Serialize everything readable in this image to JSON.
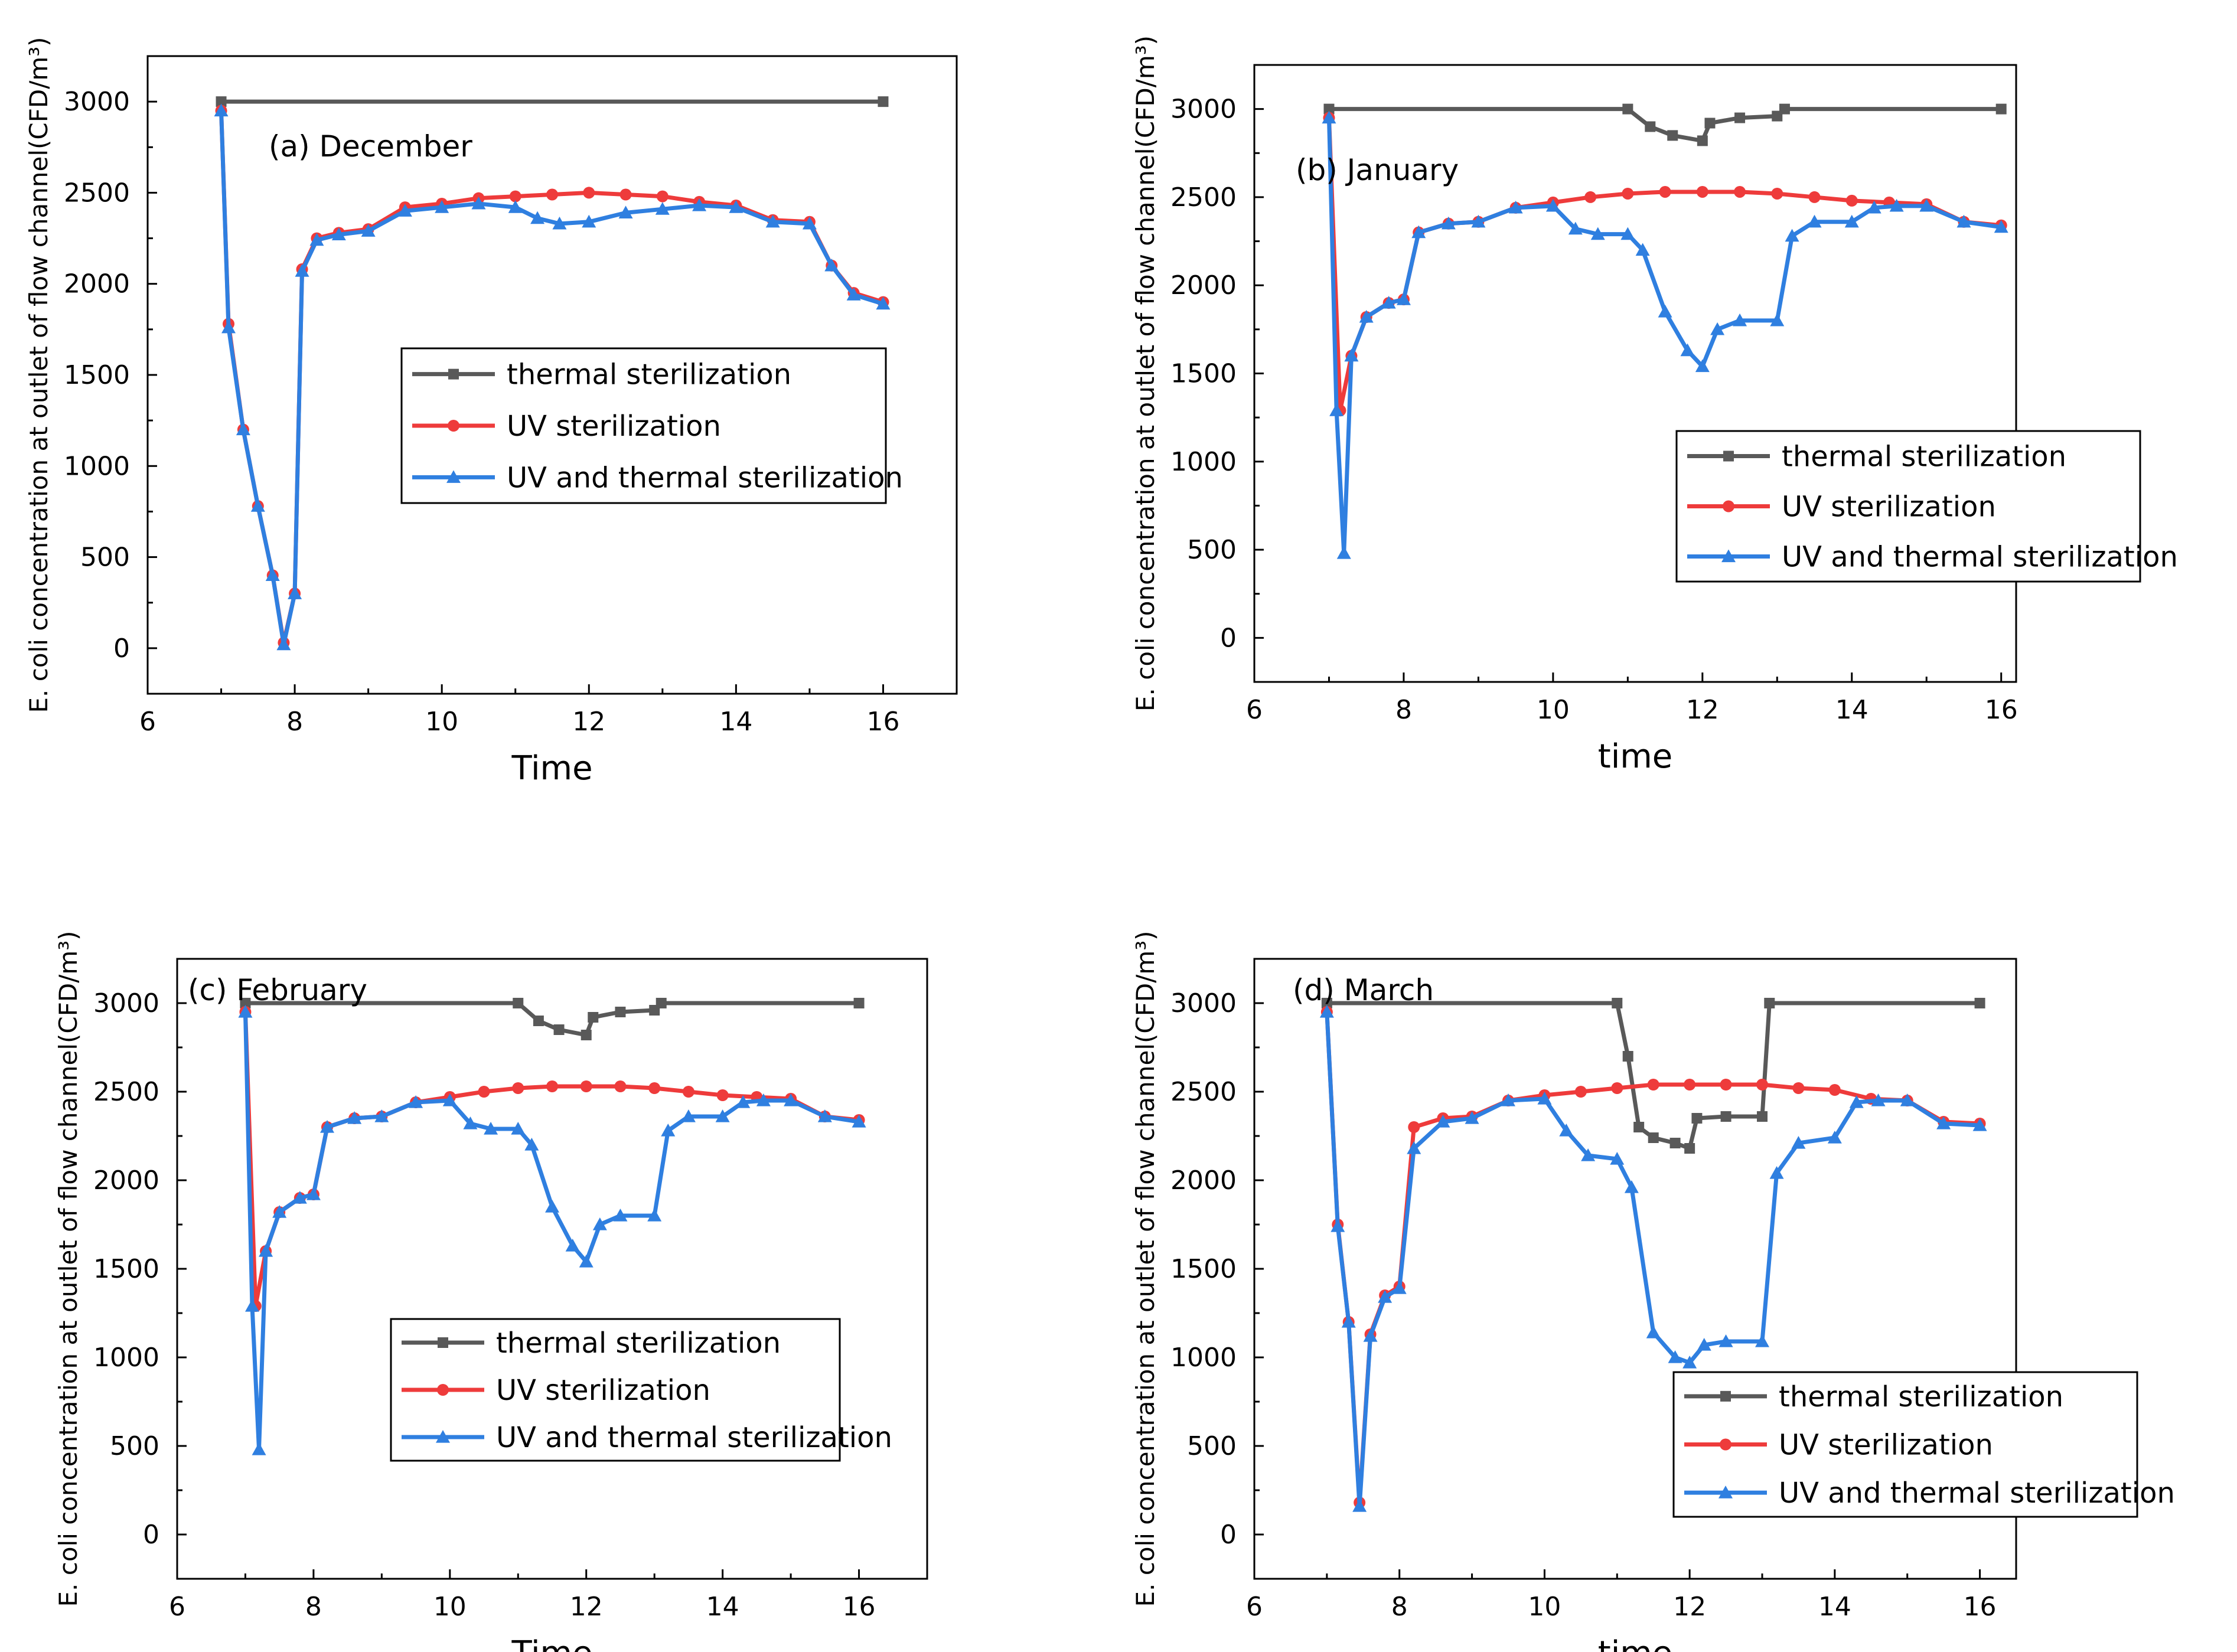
{
  "colors": {
    "thermal": "#595959",
    "uv": "#ee3b3b",
    "combined": "#2f7fe0"
  },
  "chart_data": [
    {
      "type": "line",
      "title": "(a) December",
      "xlabel": "Time",
      "ylabel": "E. coli concentration at outlet of flow channel(CFD/m³)",
      "xlim": [
        6,
        17
      ],
      "ylim": [
        -250,
        3250
      ],
      "xticks": [
        6,
        8,
        10,
        12,
        14,
        16
      ],
      "yticks": [
        0,
        500,
        1000,
        1500,
        2000,
        2500,
        3000
      ],
      "xtick_labels": [
        "6",
        "8",
        "10",
        "12",
        "14",
        "16"
      ],
      "ytick_labels": [
        "0",
        "500",
        "1000",
        "1500",
        "2000",
        "2500",
        "3000"
      ],
      "legend": [
        "thermal sterilization",
        "UV sterilization",
        "UV and thermal sterilization"
      ],
      "series": [
        {
          "name": "thermal sterilization",
          "marker": "square",
          "x": [
            7,
            16
          ],
          "y": [
            3000,
            3000
          ]
        },
        {
          "name": "UV sterilization",
          "marker": "circle",
          "x": [
            7,
            7.1,
            7.3,
            7.5,
            7.7,
            7.85,
            8,
            8.1,
            8.3,
            8.6,
            9,
            9.5,
            10,
            10.5,
            11,
            11.5,
            12,
            12.5,
            13,
            13.5,
            14,
            14.5,
            15,
            15.3,
            15.6,
            16
          ],
          "y": [
            2950,
            1780,
            1200,
            780,
            400,
            30,
            300,
            2080,
            2250,
            2280,
            2300,
            2420,
            2440,
            2470,
            2480,
            2490,
            2500,
            2490,
            2480,
            2450,
            2430,
            2350,
            2340,
            2100,
            1950,
            1900
          ]
        },
        {
          "name": "UV and thermal sterilization",
          "marker": "triangle",
          "x": [
            7,
            7.1,
            7.3,
            7.5,
            7.7,
            7.85,
            8,
            8.1,
            8.3,
            8.6,
            9,
            9.5,
            10,
            10.5,
            11,
            11.3,
            11.6,
            12,
            12.5,
            13,
            13.5,
            14,
            14.5,
            15,
            15.3,
            15.6,
            16
          ],
          "y": [
            2950,
            1760,
            1200,
            780,
            400,
            20,
            300,
            2070,
            2240,
            2270,
            2290,
            2400,
            2420,
            2440,
            2420,
            2360,
            2330,
            2340,
            2390,
            2410,
            2430,
            2420,
            2340,
            2330,
            2100,
            1940,
            1890
          ]
        }
      ]
    },
    {
      "type": "line",
      "title": "(b) January",
      "xlabel": "time",
      "ylabel": "E. coli concentration at outlet of flow channel(CFD/m³)",
      "xlim": [
        6,
        16.2
      ],
      "ylim": [
        -250,
        3250
      ],
      "xticks": [
        6,
        8,
        10,
        12,
        14,
        16
      ],
      "yticks": [
        0,
        500,
        1000,
        1500,
        2000,
        2500,
        3000
      ],
      "xtick_labels": [
        "6",
        "8",
        "10",
        "12",
        "14",
        "16"
      ],
      "ytick_labels": [
        "0",
        "500",
        "1000",
        "1500",
        "2000",
        "2500",
        "3000"
      ],
      "legend": [
        "thermal sterilization",
        "UV sterilization",
        "UV and thermal sterilization"
      ],
      "series": [
        {
          "name": "thermal sterilization",
          "marker": "square",
          "x": [
            7,
            11,
            11.3,
            11.6,
            12,
            12.1,
            12.5,
            13,
            13.1,
            16
          ],
          "y": [
            3000,
            3000,
            2900,
            2850,
            2820,
            2920,
            2950,
            2960,
            3000,
            3000
          ]
        },
        {
          "name": "UV sterilization",
          "marker": "circle",
          "x": [
            7,
            7.15,
            7.3,
            7.5,
            7.8,
            8,
            8.2,
            8.6,
            9,
            9.5,
            10,
            10.5,
            11,
            11.5,
            12,
            12.5,
            13,
            13.5,
            14,
            14.5,
            15,
            15.5,
            16
          ],
          "y": [
            2950,
            1290,
            1600,
            1820,
            1900,
            1920,
            2300,
            2350,
            2360,
            2440,
            2470,
            2500,
            2520,
            2530,
            2530,
            2530,
            2520,
            2500,
            2480,
            2470,
            2460,
            2360,
            2340
          ]
        },
        {
          "name": "UV and thermal sterilization",
          "marker": "triangle",
          "x": [
            7,
            7.1,
            7.2,
            7.3,
            7.5,
            7.8,
            8,
            8.2,
            8.6,
            9,
            9.5,
            10,
            10.3,
            10.6,
            11,
            11.2,
            11.5,
            11.8,
            12,
            12.2,
            12.5,
            13,
            13.2,
            13.5,
            14,
            14.3,
            14.6,
            15,
            15.5,
            16
          ],
          "y": [
            2950,
            1290,
            480,
            1600,
            1820,
            1900,
            1920,
            2300,
            2350,
            2360,
            2440,
            2450,
            2320,
            2290,
            2290,
            2200,
            1850,
            1630,
            1540,
            1750,
            1800,
            1800,
            2280,
            2360,
            2360,
            2440,
            2450,
            2450,
            2360,
            2330
          ]
        }
      ]
    },
    {
      "type": "line",
      "title": "(c) February",
      "xlabel": "Time",
      "ylabel": "E. coli concentration at outlet of flow channel(CFD/m³)",
      "xlim": [
        6,
        17
      ],
      "ylim": [
        -250,
        3250
      ],
      "xticks": [
        6,
        8,
        10,
        12,
        14,
        16
      ],
      "yticks": [
        0,
        500,
        1000,
        1500,
        2000,
        2500,
        3000
      ],
      "xtick_labels": [
        "6",
        "8",
        "10",
        "12",
        "14",
        "16"
      ],
      "ytick_labels": [
        "0",
        "500",
        "1000",
        "1500",
        "2000",
        "2500",
        "3000"
      ],
      "legend": [
        "thermal sterilization",
        "UV sterilization",
        "UV and thermal sterilization"
      ],
      "series": [
        {
          "name": "thermal sterilization",
          "marker": "square",
          "x": [
            7,
            11,
            11.3,
            11.6,
            12,
            12.1,
            12.5,
            13,
            13.1,
            16
          ],
          "y": [
            3000,
            3000,
            2900,
            2850,
            2820,
            2920,
            2950,
            2960,
            3000,
            3000
          ]
        },
        {
          "name": "UV sterilization",
          "marker": "circle",
          "x": [
            7,
            7.15,
            7.3,
            7.5,
            7.8,
            8,
            8.2,
            8.6,
            9,
            9.5,
            10,
            10.5,
            11,
            11.5,
            12,
            12.5,
            13,
            13.5,
            14,
            14.5,
            15,
            15.5,
            16
          ],
          "y": [
            2950,
            1290,
            1600,
            1820,
            1900,
            1920,
            2300,
            2350,
            2360,
            2440,
            2470,
            2500,
            2520,
            2530,
            2530,
            2530,
            2520,
            2500,
            2480,
            2470,
            2460,
            2360,
            2340
          ]
        },
        {
          "name": "UV and thermal sterilization",
          "marker": "triangle",
          "x": [
            7,
            7.1,
            7.2,
            7.3,
            7.5,
            7.8,
            8,
            8.2,
            8.6,
            9,
            9.5,
            10,
            10.3,
            10.6,
            11,
            11.2,
            11.5,
            11.8,
            12,
            12.2,
            12.5,
            13,
            13.2,
            13.5,
            14,
            14.3,
            14.6,
            15,
            15.5,
            16
          ],
          "y": [
            2950,
            1290,
            480,
            1600,
            1820,
            1900,
            1920,
            2300,
            2350,
            2360,
            2440,
            2450,
            2320,
            2290,
            2290,
            2200,
            1850,
            1630,
            1540,
            1750,
            1800,
            1800,
            2280,
            2360,
            2360,
            2440,
            2450,
            2450,
            2360,
            2330
          ]
        }
      ]
    },
    {
      "type": "line",
      "title": "(d) March",
      "xlabel": "time",
      "ylabel": "E. coli concentration at outlet of flow channel(CFD/m³)",
      "xlim": [
        6,
        16.5
      ],
      "ylim": [
        -250,
        3250
      ],
      "xticks": [
        6,
        8,
        10,
        12,
        14,
        16
      ],
      "yticks": [
        0,
        500,
        1000,
        1500,
        2000,
        2500,
        3000
      ],
      "xtick_labels": [
        "6",
        "8",
        "10",
        "12",
        "14",
        "16"
      ],
      "ytick_labels": [
        "0",
        "500",
        "1000",
        "1500",
        "2000",
        "2500",
        "3000"
      ],
      "legend": [
        "thermal sterilization",
        "UV sterilization",
        "UV and thermal sterilization"
      ],
      "series": [
        {
          "name": "thermal sterilization",
          "marker": "square",
          "x": [
            7,
            11,
            11.15,
            11.3,
            11.5,
            11.8,
            12,
            12.1,
            12.5,
            13,
            13.1,
            16
          ],
          "y": [
            3000,
            3000,
            2700,
            2300,
            2240,
            2210,
            2180,
            2350,
            2360,
            2360,
            3000,
            3000
          ]
        },
        {
          "name": "UV sterilization",
          "marker": "circle",
          "x": [
            7,
            7.15,
            7.3,
            7.45,
            7.6,
            7.8,
            8,
            8.2,
            8.6,
            9,
            9.5,
            10,
            10.5,
            11,
            11.5,
            12,
            12.5,
            13,
            13.5,
            14,
            14.5,
            15,
            15.5,
            16
          ],
          "y": [
            2950,
            1750,
            1200,
            180,
            1130,
            1350,
            1400,
            2300,
            2350,
            2360,
            2450,
            2480,
            2500,
            2520,
            2540,
            2540,
            2540,
            2540,
            2520,
            2510,
            2460,
            2450,
            2330,
            2320
          ]
        },
        {
          "name": "UV and thermal sterilization",
          "marker": "triangle",
          "x": [
            7,
            7.15,
            7.3,
            7.45,
            7.6,
            7.8,
            8,
            8.2,
            8.6,
            9,
            9.5,
            10,
            10.3,
            10.6,
            11,
            11.2,
            11.5,
            11.8,
            12,
            12.2,
            12.5,
            13,
            13.2,
            13.5,
            14,
            14.3,
            14.6,
            15,
            15.5,
            16
          ],
          "y": [
            2950,
            1740,
            1200,
            160,
            1120,
            1340,
            1390,
            2180,
            2330,
            2350,
            2450,
            2460,
            2280,
            2140,
            2120,
            1960,
            1140,
            1000,
            970,
            1070,
            1090,
            1090,
            2040,
            2210,
            2240,
            2440,
            2450,
            2450,
            2320,
            2310
          ]
        }
      ]
    }
  ]
}
